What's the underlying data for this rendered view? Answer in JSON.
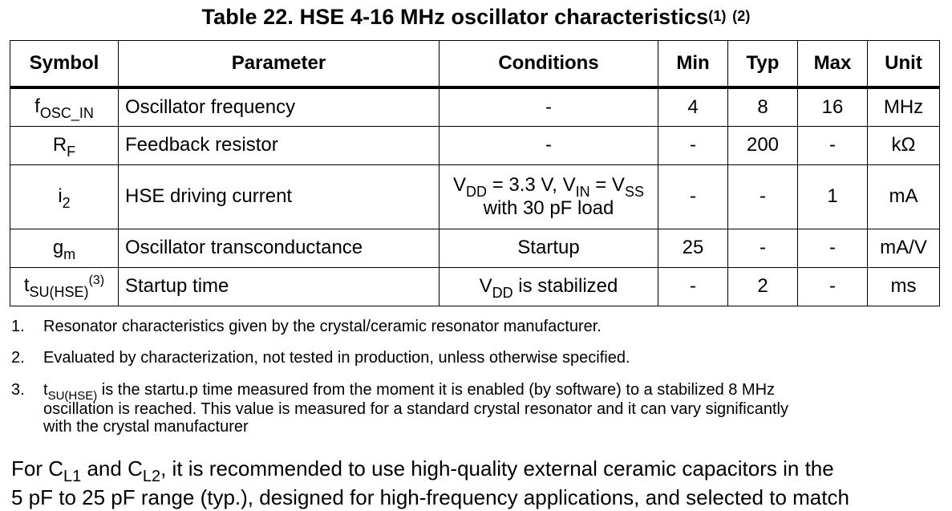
{
  "title": {
    "text": "Table 22. HSE 4-16 MHz oscillator characteristics",
    "sup1": "(1)",
    "sup2": "(2)"
  },
  "table": {
    "headers": [
      "Symbol",
      "Parameter",
      "Conditions",
      "Min",
      "Typ",
      "Max",
      "Unit"
    ],
    "rows": [
      {
        "symbol_main": "f",
        "symbol_sub": "OSC_IN",
        "parameter": "Oscillator frequency",
        "condition": "-",
        "min": "4",
        "typ": "8",
        "max": "16",
        "unit": "MHz"
      },
      {
        "symbol_main": "R",
        "symbol_sub": "F",
        "parameter": "Feedback resistor",
        "condition": "-",
        "min": "-",
        "typ": "200",
        "max": "-",
        "unit": "kΩ"
      },
      {
        "symbol_main": "i",
        "symbol_sub": "2",
        "parameter": "HSE driving current",
        "cond_v1": "V",
        "cond_dd": "DD",
        "cond_eq1": " = 3.3 V, V",
        "cond_in": "IN",
        "cond_eq2": " = V",
        "cond_ss": "SS",
        "cond_line2": "with 30 pF load",
        "min": "-",
        "typ": "-",
        "max": "1",
        "unit": "mA"
      },
      {
        "symbol_main": "g",
        "symbol_sub": "m",
        "parameter": "Oscillator transconductance",
        "condition": "Startup",
        "min": "25",
        "typ": "-",
        "max": "-",
        "unit": "mA/V"
      },
      {
        "symbol_main": "t",
        "symbol_sub": "SU(HSE)",
        "symbol_sup": "(3)",
        "parameter": "Startup time",
        "cond_v": "V",
        "cond_dd": "DD",
        "cond_rest": " is stabilized",
        "min": "-",
        "typ": "2",
        "max": "-",
        "unit": "ms"
      }
    ]
  },
  "notes": [
    {
      "num": "1.",
      "text": "Resonator characteristics given by the crystal/ceramic resonator manufacturer."
    },
    {
      "num": "2.",
      "text": "Evaluated by characterization, not tested in production, unless otherwise specified."
    },
    {
      "num": "3.",
      "sym_main": "t",
      "sym_sub": "SU(HSE)",
      "line1_rest": " is the startu.p time measured from the moment it is enabled (by software) to a stabilized 8 MHz",
      "line2": "oscillation is reached. This value is measured for a standard crystal resonator and it can vary significantly",
      "line3": "with the crystal manufacturer"
    }
  ],
  "paragraph": {
    "p1": "For C",
    "s1": "L1",
    "p2": " and C",
    "s2": "L2",
    "p3": ", it is recommended to use high-quality external ceramic capacitors in the",
    "line2": "5 pF to 25 pF range (typ.), designed for high-frequency applications, and selected to match"
  }
}
